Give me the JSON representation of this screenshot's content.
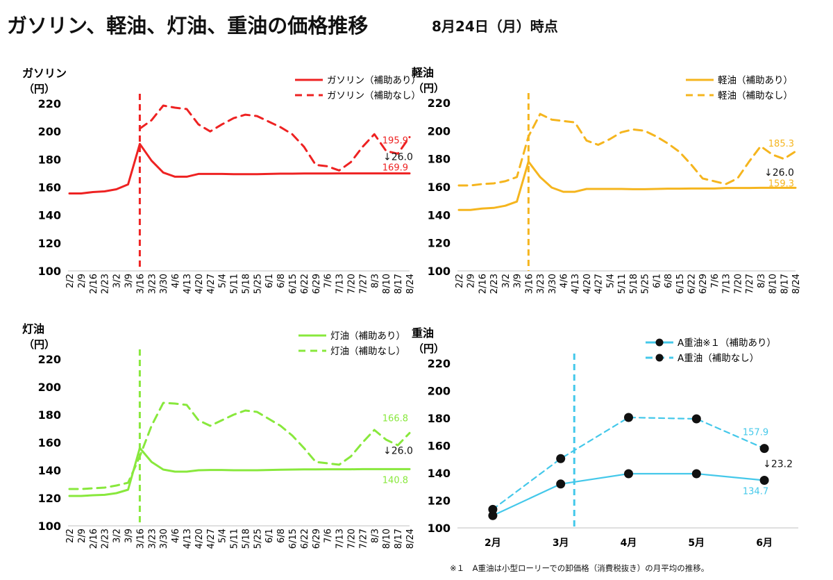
{
  "title": "ガソリン、軽油、灯油、重油の価格推移",
  "subtitle": "8月24日（月）時点",
  "footnote": "※１　A重油は小型ローリーでの卸価格（消費税抜き）の月平均の推移。",
  "chart_data": [
    {
      "id": "gasoline",
      "type": "line",
      "product": "ガソリン",
      "unit": "（円）",
      "color": "#ee2222",
      "ylim": [
        100,
        220
      ],
      "yticks": [
        100,
        120,
        140,
        160,
        180,
        200,
        220
      ],
      "grid": false,
      "legend_position": "top-right",
      "categories": [
        "2/2",
        "2/9",
        "2/16",
        "2/23",
        "3/2",
        "3/9",
        "3/16",
        "3/23",
        "3/30",
        "4/6",
        "4/13",
        "4/20",
        "4/27",
        "5/4",
        "5/11",
        "5/18",
        "5/25",
        "6/1",
        "6/8",
        "6/15",
        "6/22",
        "6/29",
        "7/6",
        "7/13",
        "7/20",
        "7/27",
        "8/3",
        "8/10",
        "8/17",
        "8/24"
      ],
      "vertical_marker": "3/16",
      "series": [
        {
          "name": "ガソリン（補助あり）",
          "style": "solid",
          "values": [
            155.5,
            155.5,
            156.5,
            157,
            158.5,
            162,
            191,
            179,
            170.5,
            167.5,
            167.5,
            169.5,
            169.5,
            169.5,
            169.3,
            169.3,
            169.3,
            169.5,
            169.7,
            169.7,
            169.8,
            169.8,
            169.8,
            169.9,
            169.9,
            169.9,
            169.9,
            169.9,
            169.9,
            169.9
          ]
        },
        {
          "name": "ガソリン（補助なし）",
          "style": "dashed",
          "values": [
            null,
            null,
            null,
            null,
            null,
            null,
            202,
            208,
            218.5,
            217,
            216,
            205,
            200,
            205,
            209.5,
            212,
            211,
            207,
            203,
            198,
            189,
            176,
            175,
            172,
            178,
            189,
            198,
            186,
            184,
            195.9
          ]
        }
      ],
      "annotations": {
        "unsubsidized_last": "195.9",
        "subsidized_last": "169.9",
        "diff": "↓26.0"
      }
    },
    {
      "id": "diesel",
      "type": "line",
      "product": "軽油",
      "unit": "（円）",
      "color": "#f5b51e",
      "ylim": [
        100,
        220
      ],
      "yticks": [
        100,
        120,
        140,
        160,
        180,
        200,
        220
      ],
      "grid": false,
      "legend_position": "top-right",
      "categories": [
        "2/2",
        "2/9",
        "2/16",
        "2/23",
        "3/2",
        "3/9",
        "3/16",
        "3/23",
        "3/30",
        "4/6",
        "4/13",
        "4/20",
        "4/27",
        "5/4",
        "5/11",
        "5/18",
        "5/25",
        "6/1",
        "6/8",
        "6/15",
        "6/22",
        "6/29",
        "7/6",
        "7/13",
        "7/20",
        "7/27",
        "8/3",
        "8/10",
        "8/17",
        "8/24"
      ],
      "vertical_marker": "3/16",
      "series": [
        {
          "name": "軽油（補助あり）",
          "style": "solid",
          "values": [
            143.5,
            143.5,
            144.5,
            145,
            146.5,
            149.5,
            178,
            167,
            159.5,
            156.5,
            156.5,
            158.5,
            158.5,
            158.5,
            158.5,
            158.3,
            158.3,
            158.5,
            158.7,
            158.7,
            158.8,
            158.8,
            158.8,
            159.2,
            159.2,
            159.2,
            159.3,
            159.3,
            159.3,
            159.3
          ]
        },
        {
          "name": "軽油（補助なし）",
          "style": "dashed",
          "values": [
            161,
            161,
            162,
            162.5,
            164,
            167,
            196,
            212,
            208,
            207,
            206,
            193,
            190,
            194,
            199,
            201,
            200,
            196,
            191,
            185,
            176,
            166,
            164,
            162,
            166,
            178,
            189,
            183,
            180,
            185.3
          ]
        }
      ],
      "annotations": {
        "unsubsidized_last": "185.3",
        "subsidized_last": "159.3",
        "diff": "↓26.0"
      }
    },
    {
      "id": "kerosene",
      "type": "line",
      "product": "灯油",
      "unit": "（円）",
      "color": "#88e83c",
      "ylim": [
        100,
        220
      ],
      "yticks": [
        100,
        120,
        140,
        160,
        180,
        200,
        220
      ],
      "grid": false,
      "legend_position": "top-right",
      "categories": [
        "2/2",
        "2/9",
        "2/16",
        "2/23",
        "3/2",
        "3/9",
        "3/16",
        "3/23",
        "3/30",
        "4/6",
        "4/13",
        "4/20",
        "4/27",
        "5/4",
        "5/11",
        "5/18",
        "5/25",
        "6/1",
        "6/8",
        "6/15",
        "6/22",
        "6/29",
        "7/6",
        "7/13",
        "7/20",
        "7/27",
        "8/3",
        "8/10",
        "8/17",
        "8/24"
      ],
      "vertical_marker": "3/16",
      "series": [
        {
          "name": "灯油（補助あり）",
          "style": "solid",
          "values": [
            121.5,
            121.5,
            122,
            122.3,
            123.5,
            126,
            156,
            146,
            140.5,
            139,
            139,
            140,
            140.2,
            140.2,
            140,
            140,
            140,
            140.2,
            140.4,
            140.5,
            140.6,
            140.6,
            140.7,
            140.7,
            140.7,
            140.8,
            140.8,
            140.8,
            140.8,
            140.8
          ]
        },
        {
          "name": "灯油（補助なし）",
          "style": "dashed",
          "values": [
            126.5,
            126.5,
            127,
            127.5,
            129,
            131,
            150,
            172,
            188.5,
            188,
            187,
            176,
            172,
            176,
            180,
            183,
            182,
            177,
            172,
            165,
            156,
            146,
            145,
            144,
            150,
            160,
            169,
            162,
            158,
            166.8
          ]
        }
      ],
      "annotations": {
        "unsubsidized_last": "166.8",
        "subsidized_last": "140.8",
        "diff": "↓26.0"
      }
    },
    {
      "id": "heavy-oil",
      "type": "line",
      "product": "重油",
      "unit": "（円）",
      "color": "#44c8ea",
      "ylim": [
        100,
        220
      ],
      "yticks": [
        100,
        120,
        140,
        160,
        180,
        200,
        220
      ],
      "grid": false,
      "legend_position": "top-right",
      "categories": [
        "2月",
        "3月",
        "4月",
        "5月",
        "6月"
      ],
      "vertical_marker_between": [
        1,
        2,
        0.2
      ],
      "series": [
        {
          "name": "A重油※１（補助あり）",
          "style": "solid",
          "markers": true,
          "values": [
            109,
            132,
            139.5,
            139.5,
            134.7
          ]
        },
        {
          "name": "A重油（補助なし）",
          "style": "dashed",
          "markers": true,
          "values": [
            113.5,
            150.5,
            180.5,
            179.5,
            157.9
          ]
        }
      ],
      "annotations": {
        "unsubsidized_last": "157.9",
        "subsidized_last": "134.7",
        "diff": "↓23.2"
      }
    }
  ]
}
